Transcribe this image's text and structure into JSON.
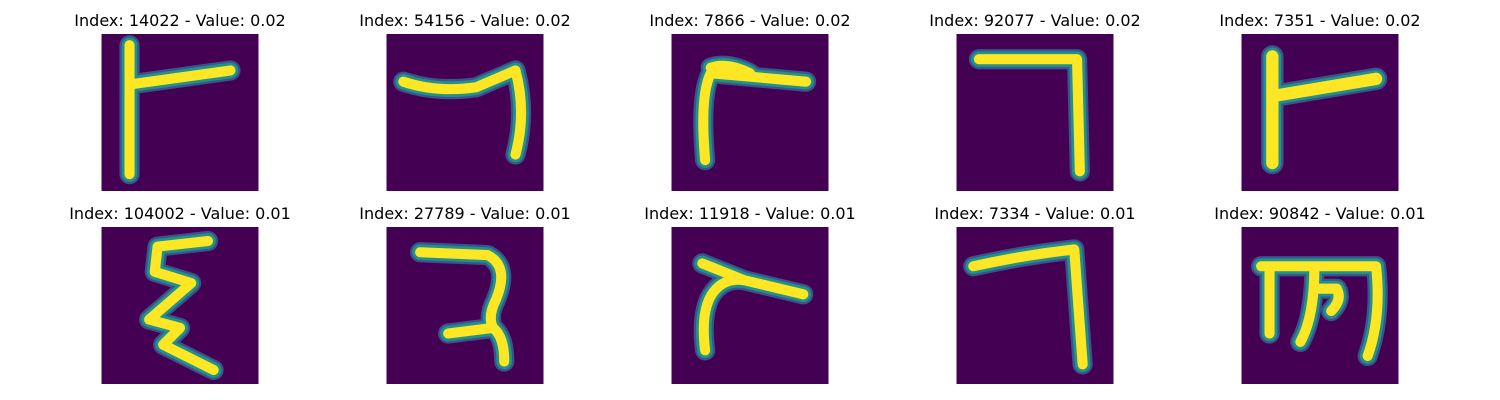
{
  "grid": {
    "rows": 2,
    "cols": 5,
    "colors": {
      "background": "#440154",
      "stroke_core": "#fde725",
      "stroke_edge": "#21918c",
      "stroke_halo": "#3b528b"
    },
    "panels": [
      {
        "title": "Index: 14022 - Value: 0.02",
        "glyph": "digit-stroke-image"
      },
      {
        "title": "Index: 54156 - Value: 0.02",
        "glyph": "digit-stroke-image"
      },
      {
        "title": "Index: 7866 - Value: 0.02",
        "glyph": "digit-stroke-image"
      },
      {
        "title": "Index: 92077 - Value: 0.02",
        "glyph": "digit-stroke-image"
      },
      {
        "title": "Index: 7351 - Value: 0.02",
        "glyph": "digit-stroke-image"
      },
      {
        "title": "Index: 104002 - Value: 0.01",
        "glyph": "digit-stroke-image"
      },
      {
        "title": "Index: 27789 - Value: 0.01",
        "glyph": "digit-stroke-image"
      },
      {
        "title": "Index: 11918 - Value: 0.01",
        "glyph": "digit-stroke-image"
      },
      {
        "title": "Index: 7334 - Value: 0.01",
        "glyph": "digit-stroke-image"
      },
      {
        "title": "Index: 90842 - Value: 0.01",
        "glyph": "digit-stroke-image"
      }
    ]
  }
}
